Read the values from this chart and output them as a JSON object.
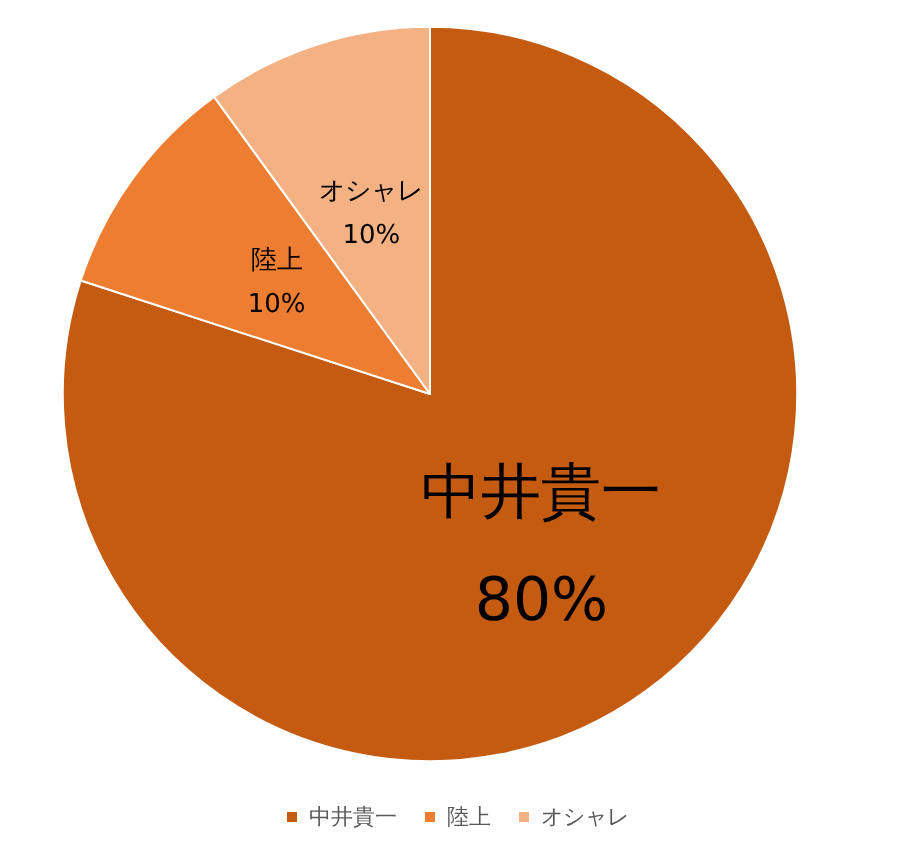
{
  "chart_data": {
    "type": "pie",
    "categories": [
      "中井貴一",
      "陸上",
      "オシャレ"
    ],
    "values": [
      80,
      10,
      10
    ],
    "value_labels": [
      "80%",
      "10%",
      "10%"
    ],
    "colors": [
      "#c55a11",
      "#ed7d31",
      "#f4b183"
    ],
    "legend": "bottom"
  }
}
